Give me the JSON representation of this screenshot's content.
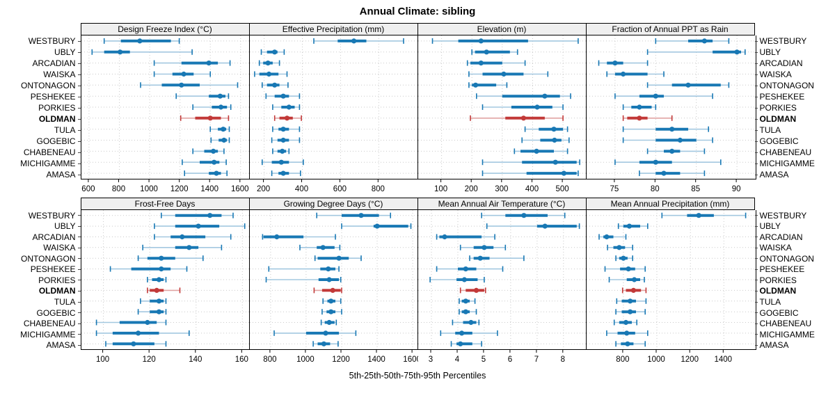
{
  "chart_data": {
    "type": "percentile-dotplot-trellis",
    "title": "Annual Climate: sibling",
    "caption": "5th-25th-50th-75th-95th Percentiles",
    "legend_meaning": "each row shows 5th-25th-50th-75th-95th percentiles; whisker = 5th-95th, thick bar = 25th-75th, dot = median",
    "stations": [
      "WESTBURY",
      "UBLY",
      "ARCADIAN",
      "WAISKA",
      "ONTONAGON",
      "PESHEKEE",
      "PORKIES",
      "OLDMAN",
      "TULA",
      "GOGEBIC",
      "CHABENEAU",
      "MICHIGAMME",
      "AMASA"
    ],
    "highlight": "OLDMAN",
    "colors": {
      "series": "#1878b4",
      "series_light": "#a3c8e0",
      "highlight": "#c23938",
      "highlight_light": "#e0a3a2",
      "strip_bg": "#efefef",
      "grid": "#c9c9c9"
    },
    "panels": [
      {
        "id": "design-freeze-index",
        "label": "Design Freeze Index (°C)",
        "row": 0,
        "xlim": [
          550,
          1665
        ],
        "ticks": [
          600,
          800,
          1000,
          1200,
          1400,
          1600
        ],
        "values": {
          "WESTBURY": [
            700,
            810,
            935,
            1140,
            1195
          ],
          "UBLY": [
            620,
            700,
            805,
            870,
            1280
          ],
          "ARCADIAN": [
            1030,
            1210,
            1390,
            1450,
            1530
          ],
          "WAISKA": [
            1030,
            1150,
            1225,
            1290,
            1400
          ],
          "ONTONAGON": [
            940,
            1080,
            1210,
            1330,
            1580
          ],
          "PESHEKEE": [
            1175,
            1390,
            1465,
            1500,
            1520
          ],
          "PORKIES": [
            1285,
            1410,
            1470,
            1510,
            1535
          ],
          "OLDMAN": [
            1205,
            1300,
            1400,
            1470,
            1520
          ],
          "TULA": [
            1400,
            1450,
            1485,
            1505,
            1525
          ],
          "GOGEBIC": [
            1405,
            1455,
            1490,
            1510,
            1525
          ],
          "CHABENEAU": [
            1285,
            1360,
            1420,
            1450,
            1490
          ],
          "MICHIGAMME": [
            1215,
            1330,
            1425,
            1460,
            1505
          ],
          "AMASA": [
            1230,
            1390,
            1440,
            1470,
            1510
          ]
        }
      },
      {
        "id": "effective-precipitation",
        "label": "Effective Precipitation (mm)",
        "row": 0,
        "xlim": [
          125,
          1010
        ],
        "ticks": [
          200,
          400,
          600,
          800
        ],
        "values": {
          "WESTBURY": [
            460,
            585,
            670,
            735,
            930
          ],
          "UBLY": [
            185,
            215,
            255,
            270,
            305
          ],
          "ARCADIAN": [
            175,
            195,
            220,
            245,
            280
          ],
          "WAISKA": [
            150,
            175,
            225,
            275,
            320
          ],
          "ONTONAGON": [
            190,
            215,
            255,
            280,
            325
          ],
          "PESHEKEE": [
            210,
            255,
            300,
            330,
            385
          ],
          "PORKIES": [
            245,
            290,
            330,
            360,
            385
          ],
          "OLDMAN": [
            255,
            280,
            320,
            350,
            395
          ],
          "TULA": [
            245,
            275,
            300,
            330,
            385
          ],
          "GOGEBIC": [
            240,
            270,
            300,
            330,
            385
          ],
          "CHABENEAU": [
            245,
            270,
            295,
            315,
            330
          ],
          "MICHIGAMME": [
            190,
            240,
            290,
            330,
            405
          ],
          "AMASA": [
            240,
            275,
            300,
            330,
            390
          ]
        }
      },
      {
        "id": "elevation",
        "label": "Elevation (m)",
        "row": 0,
        "xlim": [
          23,
          580
        ],
        "ticks": [
          100,
          200,
          300,
          400,
          500
        ],
        "values": {
          "WESTBURY": [
            70,
            155,
            230,
            385,
            550
          ],
          "UBLY": [
            200,
            210,
            248,
            325,
            350
          ],
          "ARCADIAN": [
            185,
            195,
            230,
            300,
            375
          ],
          "WAISKA": [
            190,
            235,
            305,
            370,
            450
          ],
          "ONTONAGON": [
            190,
            200,
            212,
            280,
            315
          ],
          "PESHEKEE": [
            215,
            300,
            440,
            490,
            525
          ],
          "PORKIES": [
            235,
            330,
            415,
            465,
            500
          ],
          "OLDMAN": [
            195,
            310,
            370,
            440,
            500
          ],
          "TULA": [
            375,
            420,
            470,
            500,
            515
          ],
          "GOGEBIC": [
            365,
            425,
            472,
            495,
            520
          ],
          "CHABENEAU": [
            340,
            360,
            413,
            470,
            515
          ],
          "MICHIGAMME": [
            235,
            365,
            475,
            545,
            555
          ],
          "AMASA": [
            235,
            380,
            503,
            545,
            550
          ]
        }
      },
      {
        "id": "fraction-ppt-rain",
        "label": "Fraction of Annual PPT as Rain",
        "row": 0,
        "xlim": [
          71.5,
          92.3
        ],
        "ticks": [
          75,
          80,
          85,
          90
        ],
        "values": {
          "WESTBURY": [
            80,
            84,
            86,
            87,
            89
          ],
          "UBLY": [
            79,
            87,
            90,
            90.5,
            91
          ],
          "ARCADIAN": [
            73,
            74,
            75,
            76,
            79
          ],
          "WAISKA": [
            74,
            75,
            76,
            79,
            81
          ],
          "ONTONAGON": [
            79,
            82,
            84,
            88,
            89
          ],
          "PESHEKEE": [
            75,
            78,
            80,
            81,
            87
          ],
          "PORKIES": [
            76,
            77,
            78,
            79.5,
            80
          ],
          "OLDMAN": [
            76,
            76.5,
            78,
            79,
            82
          ],
          "TULA": [
            76,
            80,
            82,
            84,
            86.5
          ],
          "GOGEBIC": [
            76,
            80,
            83,
            85,
            87
          ],
          "CHABENEAU": [
            79,
            81,
            82,
            83,
            86
          ],
          "MICHIGAMME": [
            75,
            78,
            80,
            82,
            88
          ],
          "AMASA": [
            78,
            80,
            81,
            83,
            86
          ]
        }
      },
      {
        "id": "frost-free-days",
        "label": "Frost-Free Days",
        "row": 1,
        "xlim": [
          90.5,
          163.5
        ],
        "ticks": [
          100,
          120,
          140,
          160
        ],
        "values": {
          "WESTBURY": [
            125,
            131,
            146,
            151,
            156
          ],
          "UBLY": [
            122,
            131,
            141,
            150,
            161
          ],
          "ARCADIAN": [
            122,
            129,
            134,
            144,
            155
          ],
          "WAISKA": [
            117,
            131,
            137,
            141,
            151
          ],
          "ONTONAGON": [
            115,
            119,
            125,
            131,
            143
          ],
          "PESHEKEE": [
            103,
            112,
            125,
            129,
            136
          ],
          "PORKIES": [
            119,
            121,
            124,
            126,
            127
          ],
          "OLDMAN": [
            119,
            120,
            123,
            126,
            133
          ],
          "TULA": [
            116,
            120,
            124,
            126,
            127
          ],
          "GOGEBIC": [
            115,
            120,
            124,
            126,
            127
          ],
          "CHABENEAU": [
            97,
            107,
            119,
            123,
            127
          ],
          "MICHIGAMME": [
            97,
            104,
            115,
            124,
            137
          ],
          "AMASA": [
            101,
            104,
            113,
            122,
            127
          ]
        }
      },
      {
        "id": "growing-degree-days",
        "label": "Growing Degree Days (°C)",
        "row": 1,
        "xlim": [
          683,
          1635
        ],
        "ticks": [
          800,
          1000,
          1200,
          1400,
          1600
        ],
        "values": {
          "WESTBURY": [
            1060,
            1200,
            1310,
            1410,
            1475
          ],
          "UBLY": [
            1200,
            1380,
            1400,
            1575,
            1590
          ],
          "ARCADIAN": [
            755,
            760,
            835,
            985,
            1165
          ],
          "WAISKA": [
            965,
            1060,
            1095,
            1160,
            1190
          ],
          "ONTONAGON": [
            1050,
            1065,
            1185,
            1240,
            1310
          ],
          "PESHEKEE": [
            790,
            1080,
            1125,
            1165,
            1185
          ],
          "PORKIES": [
            775,
            1070,
            1130,
            1185,
            1195
          ],
          "OLDMAN": [
            1045,
            1090,
            1150,
            1195,
            1200
          ],
          "TULA": [
            1095,
            1120,
            1140,
            1165,
            1195
          ],
          "GOGEBIC": [
            1090,
            1115,
            1140,
            1165,
            1200
          ],
          "CHABENEAU": [
            1085,
            1105,
            1130,
            1160,
            1170
          ],
          "MICHIGAMME": [
            820,
            1000,
            1110,
            1185,
            1280
          ],
          "AMASA": [
            1040,
            1065,
            1100,
            1135,
            1180
          ]
        }
      },
      {
        "id": "mean-annual-air-temperature",
        "label": "Mean Annual Air Temperature (°C)",
        "row": 1,
        "xlim": [
          2.5,
          8.9
        ],
        "ticks": [
          3,
          4,
          5,
          6,
          7,
          8
        ],
        "values": {
          "WESTBURY": [
            4.9,
            5.8,
            6.5,
            7.4,
            8.05
          ],
          "UBLY": [
            5.1,
            7.0,
            7.3,
            8.5,
            8.6
          ],
          "ARCADIAN": [
            3.2,
            3.3,
            3.5,
            4.9,
            5.4
          ],
          "WAISKA": [
            4.1,
            4.6,
            5.0,
            5.35,
            5.8
          ],
          "ONTONAGON": [
            4.45,
            4.6,
            4.85,
            5.2,
            6.5
          ],
          "PESHEKEE": [
            3.2,
            4.0,
            4.3,
            4.7,
            5.7
          ],
          "PORKIES": [
            2.95,
            3.95,
            4.25,
            4.75,
            5.0
          ],
          "OLDMAN": [
            4.1,
            4.3,
            4.7,
            5.0,
            5.05
          ],
          "TULA": [
            4.05,
            4.15,
            4.3,
            4.45,
            4.65
          ],
          "GOGEBIC": [
            4.05,
            4.15,
            4.3,
            4.45,
            4.7
          ],
          "CHABENEAU": [
            3.8,
            4.2,
            4.5,
            4.7,
            4.8
          ],
          "MICHIGAMME": [
            3.35,
            3.9,
            4.15,
            4.55,
            5.5
          ],
          "AMASA": [
            3.75,
            3.95,
            4.1,
            4.55,
            4.9
          ]
        }
      },
      {
        "id": "mean-annual-precipitation",
        "label": "Mean Annual Precipitation (mm)",
        "row": 1,
        "xlim": [
          580,
          1590
        ],
        "ticks": [
          800,
          1000,
          1200,
          1400
        ],
        "values": {
          "WESTBURY": [
            1030,
            1180,
            1250,
            1340,
            1530
          ],
          "UBLY": [
            770,
            800,
            835,
            900,
            945
          ],
          "ARCADIAN": [
            655,
            680,
            700,
            740,
            815
          ],
          "WAISKA": [
            705,
            740,
            775,
            810,
            855
          ],
          "ONTONAGON": [
            755,
            775,
            800,
            825,
            855
          ],
          "PESHEKEE": [
            690,
            780,
            830,
            870,
            930
          ],
          "PORKIES": [
            715,
            820,
            865,
            900,
            925
          ],
          "OLDMAN": [
            795,
            815,
            860,
            905,
            935
          ],
          "TULA": [
            760,
            790,
            840,
            875,
            935
          ],
          "GOGEBIC": [
            755,
            790,
            840,
            875,
            930
          ],
          "CHABENEAU": [
            745,
            775,
            815,
            850,
            880
          ],
          "MICHIGAMME": [
            700,
            765,
            820,
            870,
            945
          ],
          "AMASA": [
            755,
            785,
            825,
            860,
            930
          ]
        }
      }
    ]
  }
}
